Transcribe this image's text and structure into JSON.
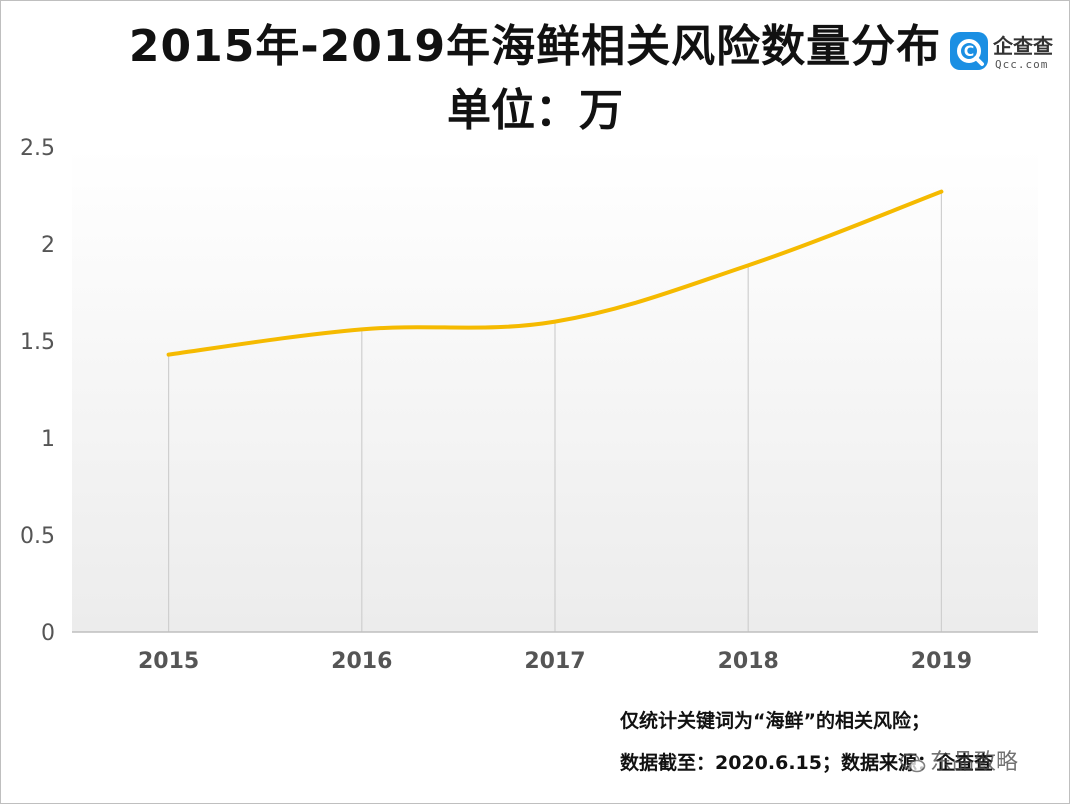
{
  "title": "2015年-2019年海鲜相关风险数量分布",
  "subtitle": "单位：万",
  "logo": {
    "name": "企查查",
    "sub": "Qcc.com",
    "icon": "qcc-logo-icon"
  },
  "notes": [
    "仅统计关键词为“海鲜”的相关风险；",
    "数据截至：2020.6.15；数据来源：企查查"
  ],
  "watermark": {
    "icon": "wechat-icon",
    "text": "东品致略"
  },
  "colors": {
    "line": "#F5BA00",
    "gridline": "#cfcfcf",
    "axis": "#bfbfbf"
  },
  "chart_data": {
    "type": "line",
    "title": "2015年-2019年海鲜相关风险数量分布",
    "subtitle": "单位：万",
    "categories": [
      "2015",
      "2016",
      "2017",
      "2018",
      "2019"
    ],
    "series": [
      {
        "values": [
          1.43,
          1.56,
          1.6,
          1.89,
          2.27
        ]
      }
    ],
    "xlabel": "",
    "ylabel": "",
    "ylim": [
      0,
      2.5
    ],
    "yticks": [
      "0",
      "0.5",
      "1",
      "1.5",
      "2",
      "2.5"
    ],
    "grid": "vertical",
    "smooth": true,
    "legend": "none"
  }
}
